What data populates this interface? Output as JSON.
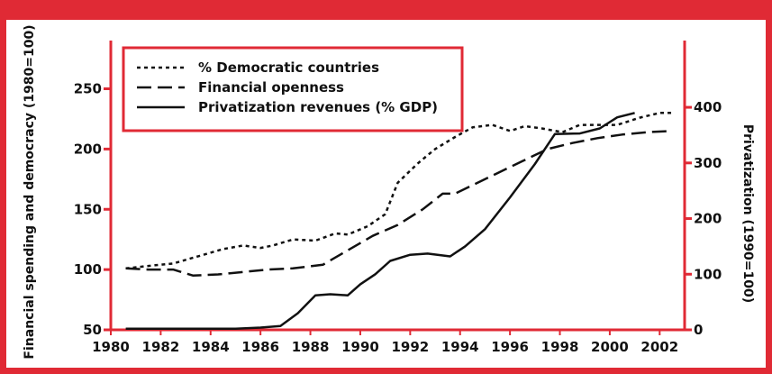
{
  "colors": {
    "frame": "#e02a35",
    "axis": "#e02a35",
    "line": "#111111",
    "background": "#ffffff"
  },
  "chart_data": {
    "type": "line",
    "xlabel": "",
    "ylabel_left": "Financial spending and democracy (1980=100)",
    "ylabel_right": "Privatization (1990=100)",
    "xlim": [
      1980,
      2003
    ],
    "ylim_left": [
      50,
      290
    ],
    "ylim_right": [
      0,
      520
    ],
    "x_ticks": [
      "1980",
      "1982",
      "1984",
      "1986",
      "1988",
      "1990",
      "1992",
      "1994",
      "1996",
      "1998",
      "2000",
      "2002"
    ],
    "y_ticks_left": [
      "50",
      "100",
      "150",
      "200",
      "250"
    ],
    "y_ticks_right": [
      "0",
      "100",
      "200",
      "300",
      "400"
    ],
    "grid": false,
    "legend_position": "top-left",
    "series": [
      {
        "name": "% Democratic countries",
        "style": "dotted",
        "axis": "left",
        "x": [
          1980.6,
          1981.5,
          1982.5,
          1983.5,
          1984.5,
          1985.3,
          1986,
          1986.5,
          1987.3,
          1988.2,
          1989,
          1989.5,
          1990.3,
          1991,
          1991.5,
          1992.3,
          1993,
          1993.8,
          1994.5,
          1995.3,
          1996,
          1996.6,
          1997.3,
          1998.1,
          1998.8,
          1999.6,
          2000.3,
          2001.2,
          2002,
          2002.5
        ],
        "values": [
          101,
          103,
          105,
          111,
          117,
          120,
          118,
          120,
          125,
          124,
          130,
          129,
          136,
          146,
          172,
          188,
          200,
          210,
          218,
          220,
          215,
          219,
          217,
          214,
          220,
          220,
          220,
          226,
          230,
          230
        ]
      },
      {
        "name": "Financial openness",
        "style": "dashed",
        "axis": "left",
        "x": [
          1980.6,
          1981.5,
          1982.5,
          1983.3,
          1984.3,
          1985.3,
          1986.3,
          1987.3,
          1988.5,
          1989.5,
          1990.5,
          1991.5,
          1992.5,
          1993.3,
          1993.8,
          1994.5,
          1995.5,
          1996.5,
          1997.5,
          1998.5,
          1999.5,
          2000.5,
          2001.5,
          2002.5
        ],
        "values": [
          101,
          100,
          100,
          95,
          96,
          98,
          100,
          101,
          104,
          116,
          128,
          137,
          150,
          163,
          163,
          170,
          180,
          190,
          200,
          205,
          209,
          212,
          214,
          215
        ]
      },
      {
        "name": "Privatization revenues (% GDP)",
        "style": "solid",
        "axis": "right",
        "x": [
          1980.6,
          1982,
          1983.5,
          1985,
          1986,
          1986.8,
          1987.5,
          1988.2,
          1988.8,
          1989.5,
          1990,
          1990.6,
          1991.2,
          1992,
          1992.7,
          1993.6,
          1994.2,
          1995,
          1996,
          1997,
          1997.8,
          1998.8,
          1999.6,
          2000.3,
          2001
        ],
        "values": [
          2,
          2,
          2,
          2,
          4,
          7,
          30,
          62,
          64,
          62,
          82,
          100,
          124,
          135,
          137,
          132,
          150,
          181,
          238,
          298,
          352,
          353,
          362,
          382,
          390
        ]
      }
    ]
  }
}
